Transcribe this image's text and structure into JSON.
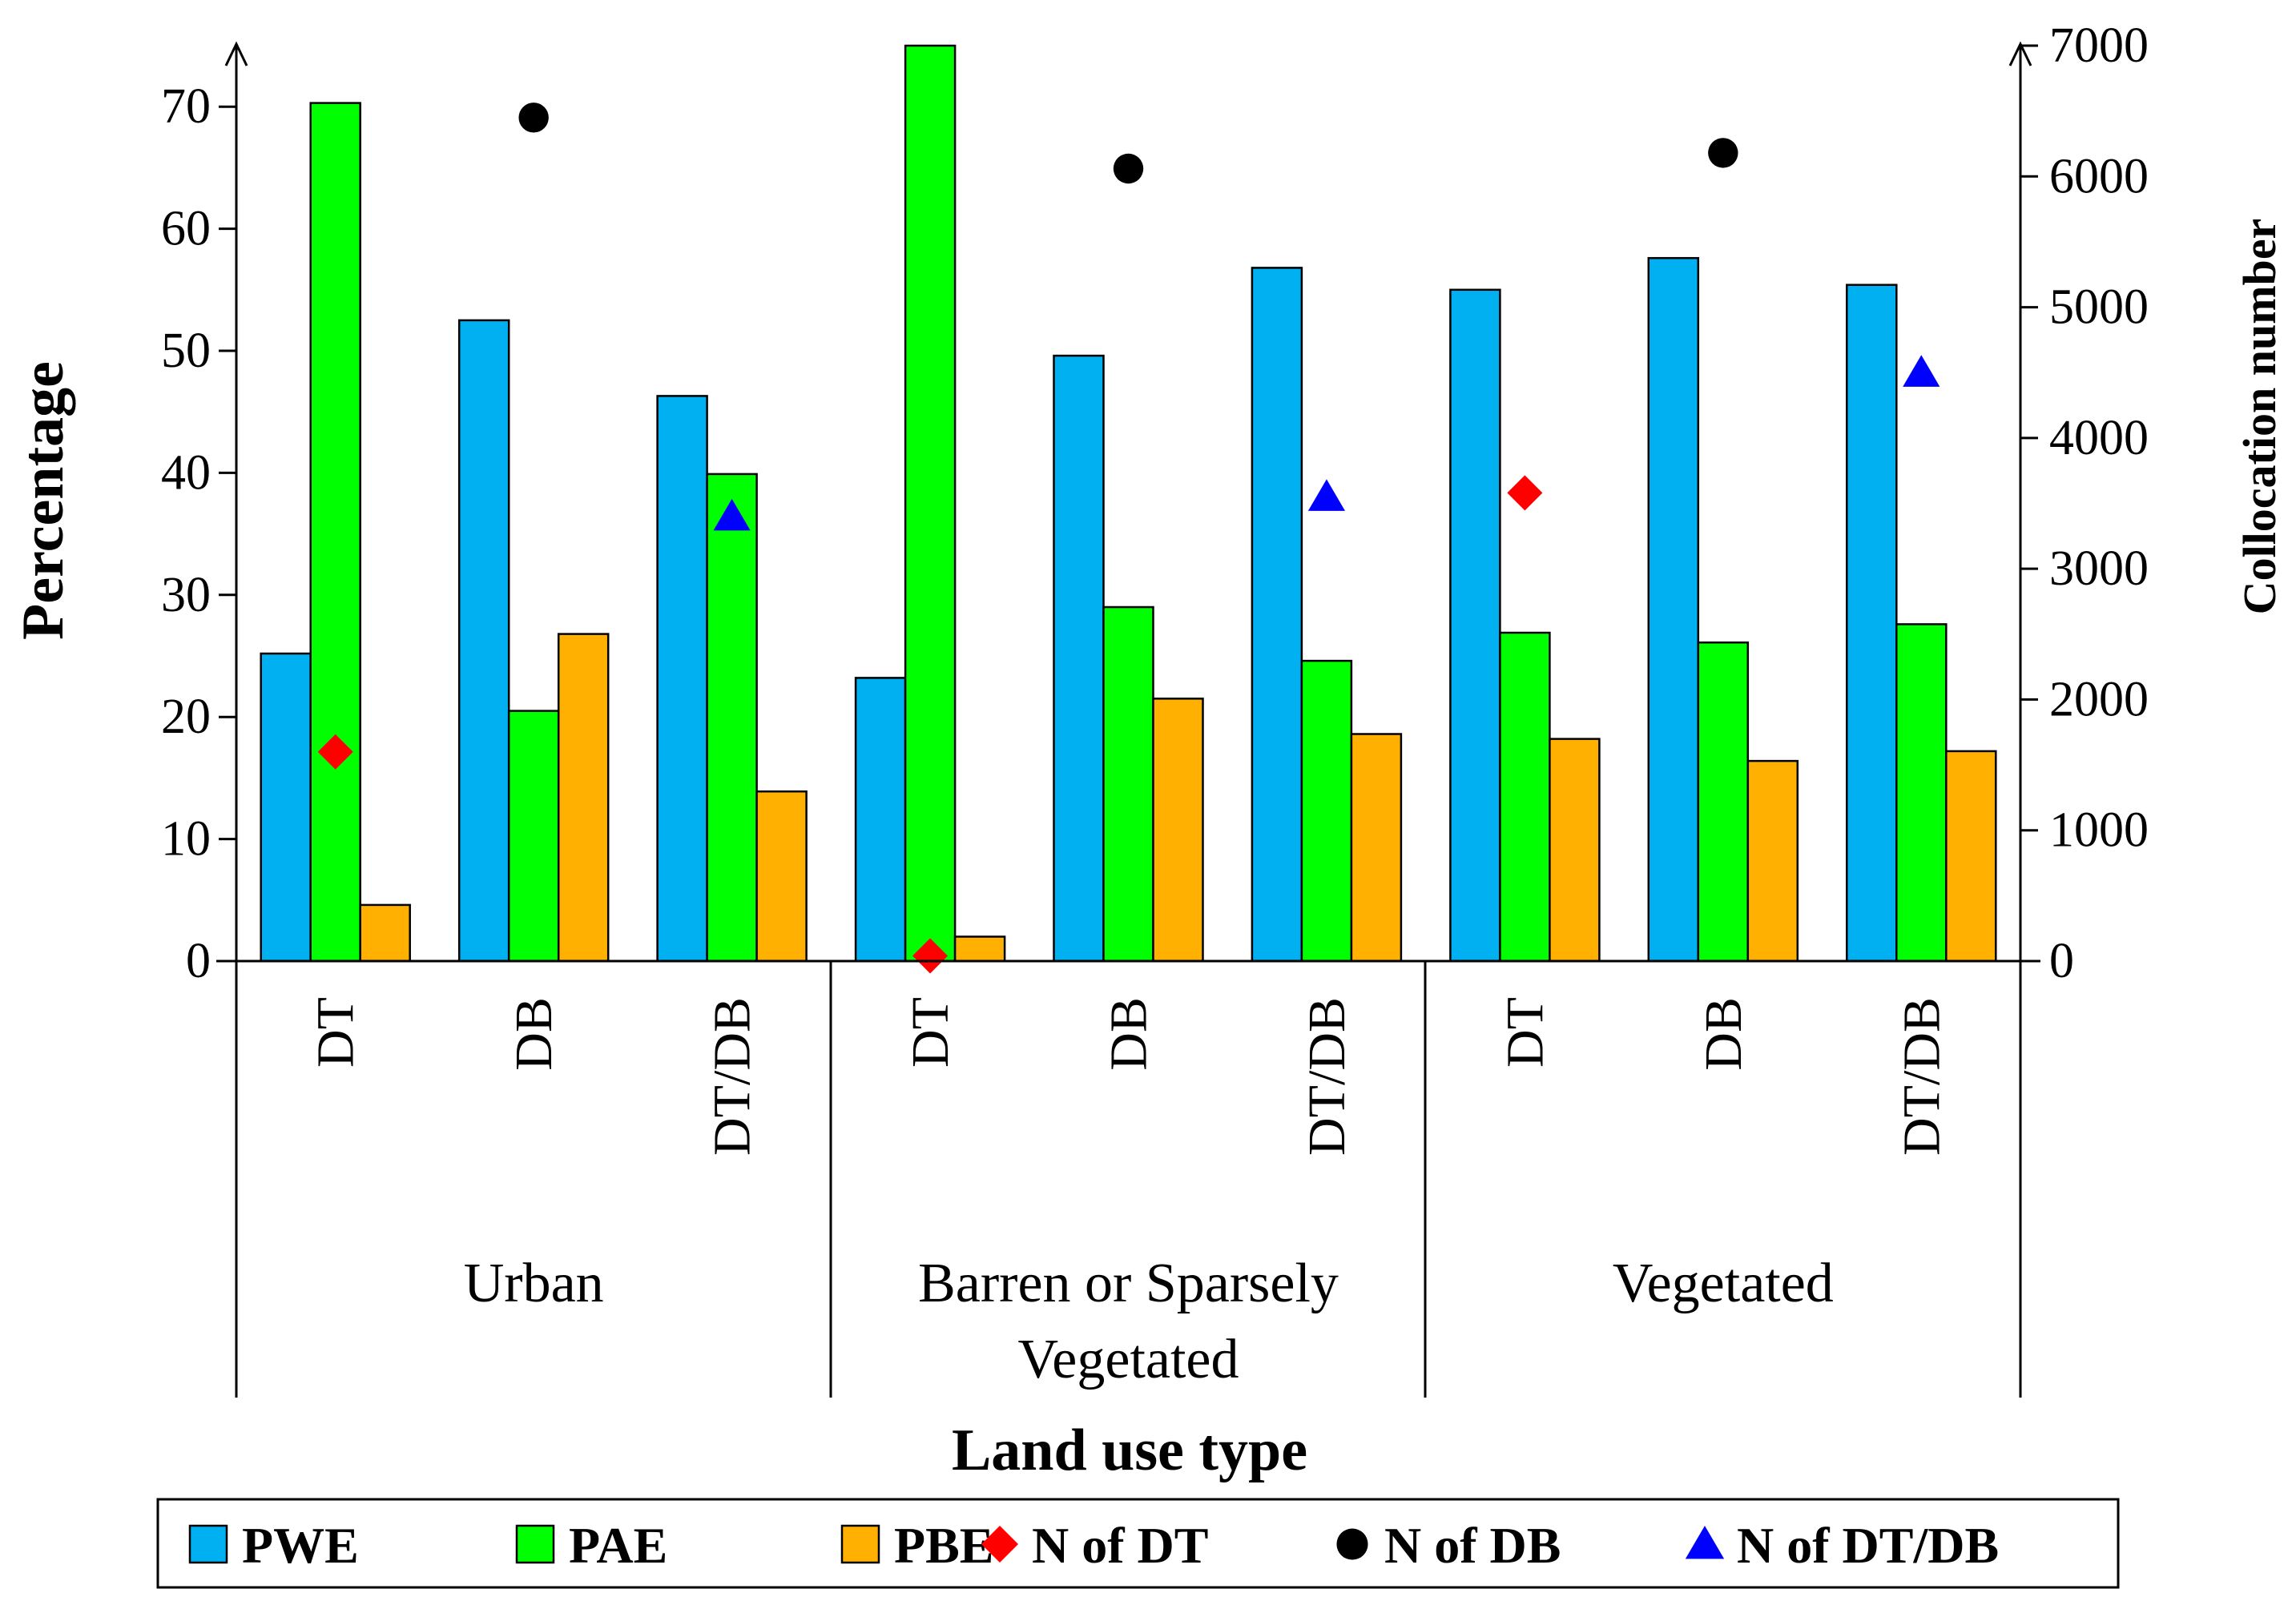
{
  "chart_data": {
    "type": "bar",
    "xlabel": "Land use type",
    "ylabel": "Percentage",
    "y2label": "Collocation number",
    "ylim": [
      0,
      75
    ],
    "y2lim": [
      0,
      7000
    ],
    "yticks": [
      "0",
      "10",
      "20",
      "30",
      "40",
      "50",
      "60",
      "70"
    ],
    "y2ticks": [
      "0",
      "1000",
      "2000",
      "3000",
      "4000",
      "5000",
      "6000",
      "7000"
    ],
    "groups": [
      {
        "name": "Urban",
        "lines": [
          "Urban"
        ]
      },
      {
        "name": "Barren or Sparsely Vegetated",
        "lines": [
          "Barren or Sparsely",
          "Vegetated"
        ]
      },
      {
        "name": "Vegetated",
        "lines": [
          "Vegetated"
        ]
      }
    ],
    "categories": [
      "DT",
      "DB",
      "DT/DB",
      "DT",
      "DB",
      "DT/DB",
      "DT",
      "DB",
      "DT/DB"
    ],
    "series": [
      {
        "name": "PWE",
        "color": "#00B0F0",
        "values": [
          25.2,
          52.5,
          46.3,
          23.2,
          49.6,
          56.8,
          55.0,
          57.6,
          55.4
        ]
      },
      {
        "name": "PAE",
        "color": "#00FF00",
        "values": [
          70.3,
          20.5,
          39.9,
          75.0,
          29.0,
          24.6,
          26.9,
          26.1,
          27.6
        ]
      },
      {
        "name": "PBE",
        "color": "#FFB000",
        "values": [
          4.6,
          26.8,
          13.9,
          2.0,
          21.5,
          18.6,
          18.2,
          16.4,
          17.2
        ]
      }
    ],
    "markers": [
      {
        "name": "N of DT",
        "shape": "diamond",
        "color": "#FF0000",
        "points": [
          {
            "index": 0,
            "value": 1600
          },
          {
            "index": 3,
            "value": 40
          },
          {
            "index": 6,
            "value": 3580
          }
        ]
      },
      {
        "name": "N of DB",
        "shape": "circle",
        "color": "#000000",
        "points": [
          {
            "index": 1,
            "value": 6450
          },
          {
            "index": 4,
            "value": 6060
          },
          {
            "index": 7,
            "value": 6180
          }
        ]
      },
      {
        "name": "N of DT/DB",
        "shape": "triangle",
        "color": "#0000FF",
        "points": [
          {
            "index": 2,
            "value": 3400
          },
          {
            "index": 5,
            "value": 3550
          },
          {
            "index": 8,
            "value": 4500
          }
        ]
      }
    ],
    "legend_position": "bottom"
  }
}
